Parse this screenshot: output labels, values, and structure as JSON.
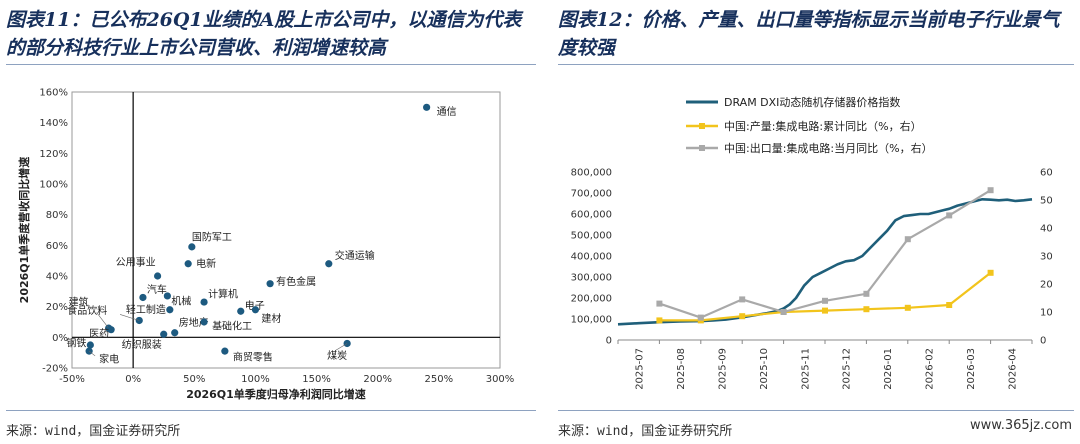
{
  "left_title": "图表11：已公布26Q1业绩的A股上市公司中，以通信为代表的部分科技行业上市公司营收、利润增速较高",
  "right_title": "图表12：价格、产量、出口量等指标显示当前电子行业景气度较强",
  "left_source": "来源：wind，国金证券研究所",
  "right_source": "来源：wind，国金证券研究所",
  "watermark": "www.365jz.com",
  "chart_data": [
    {
      "type": "scatter",
      "title": "",
      "xlabel": "2026Q1单季度归母净利润同比增速",
      "ylabel": "2026Q1单季度营收同比增速",
      "xlim": [
        -50,
        300
      ],
      "ylim": [
        -20,
        160
      ],
      "x_ticks": [
        -50,
        0,
        50,
        100,
        150,
        200,
        250,
        300
      ],
      "y_ticks": [
        -20,
        0,
        20,
        40,
        60,
        80,
        100,
        120,
        140,
        160
      ],
      "tick_format": "percent",
      "color": "#1d5a80",
      "points": [
        {
          "label": "通信",
          "x": 240,
          "y": 150
        },
        {
          "label": "国防军工",
          "x": 48,
          "y": 59
        },
        {
          "label": "电新",
          "x": 45,
          "y": 48
        },
        {
          "label": "公用事业",
          "x": 20,
          "y": 40
        },
        {
          "label": "交通运输",
          "x": 160,
          "y": 48
        },
        {
          "label": "有色金属",
          "x": 112,
          "y": 35
        },
        {
          "label": "汽车",
          "x": 8,
          "y": 26
        },
        {
          "label": "机械",
          "x": 28,
          "y": 27
        },
        {
          "label": "计算机",
          "x": 58,
          "y": 23
        },
        {
          "label": "轻工制造",
          "x": 30,
          "y": 18
        },
        {
          "label": "电子",
          "x": 88,
          "y": 17
        },
        {
          "label": "建材",
          "x": 100,
          "y": 18
        },
        {
          "label": "建筑",
          "x": -20,
          "y": 6
        },
        {
          "label": "食品饮料",
          "x": 5,
          "y": 11
        },
        {
          "label": "医药",
          "x": -18,
          "y": 5
        },
        {
          "label": "房地产",
          "x": 34,
          "y": 3
        },
        {
          "label": "基础化工",
          "x": 58,
          "y": 10
        },
        {
          "label": "钢铁",
          "x": -35,
          "y": -5
        },
        {
          "label": "家电",
          "x": -36,
          "y": -9
        },
        {
          "label": "纺织服装",
          "x": 25,
          "y": 2
        },
        {
          "label": "商贸零售",
          "x": 75,
          "y": -9
        },
        {
          "label": "煤炭",
          "x": 175,
          "y": -4
        }
      ]
    },
    {
      "type": "line",
      "title": "",
      "x_categories": [
        "2025-07",
        "2025-08",
        "2025-09",
        "2025-10",
        "2025-11",
        "2025-12",
        "2026-01",
        "2026-02",
        "2026-03",
        "2026-04"
      ],
      "y_left_lim": [
        0,
        800000
      ],
      "y_left_ticks": [
        0,
        100000,
        200000,
        300000,
        400000,
        500000,
        600000,
        700000,
        800000
      ],
      "y_right_lim": [
        0,
        60
      ],
      "y_right_ticks": [
        0,
        10,
        20,
        30,
        40,
        50,
        60
      ],
      "legend_position": "top-left",
      "series": [
        {
          "name": "DRAM DXI动态随机存储器价格指数",
          "axis": "left",
          "color": "#1f5f7a",
          "x": [
            0,
            0.5,
            1,
            1.5,
            2,
            2.3,
            2.6,
            3,
            3.3,
            3.6,
            3.85,
            4,
            4.15,
            4.3,
            4.5,
            4.7,
            4.9,
            5.1,
            5.3,
            5.5,
            5.7,
            5.9,
            6.1,
            6.3,
            6.5,
            6.7,
            6.9,
            7.1,
            7.3,
            7.5,
            7.7,
            7.9,
            8.0,
            8.2,
            8.4,
            8.6,
            8.8,
            9.0,
            9.2,
            9.4,
            9.6,
            9.8,
            10
          ],
          "y": [
            75000,
            80000,
            85000,
            88000,
            90000,
            93000,
            97000,
            108000,
            118000,
            128000,
            138000,
            150000,
            170000,
            200000,
            260000,
            300000,
            320000,
            340000,
            360000,
            375000,
            380000,
            400000,
            440000,
            480000,
            520000,
            570000,
            590000,
            595000,
            600000,
            600000,
            610000,
            620000,
            625000,
            640000,
            650000,
            660000,
            670000,
            668000,
            665000,
            668000,
            662000,
            665000,
            670000
          ]
        },
        {
          "name": "中国:产量:集成电路:累计同比（%，右）",
          "axis": "right",
          "color": "#f2c41c",
          "x": [
            1,
            2,
            3,
            4,
            5,
            6,
            7,
            8,
            9
          ],
          "y": [
            7,
            7,
            8.5,
            10,
            10.5,
            11,
            11.5,
            12.5,
            24
          ]
        },
        {
          "name": "中国:出口量:集成电路:当月同比（%，右）",
          "axis": "right",
          "color": "#a9a9a9",
          "x": [
            1,
            2,
            3,
            4,
            5,
            6,
            7,
            8,
            9
          ],
          "y": [
            13,
            8,
            14.5,
            10,
            14,
            16.5,
            36,
            44.5,
            53.5
          ]
        }
      ]
    }
  ]
}
